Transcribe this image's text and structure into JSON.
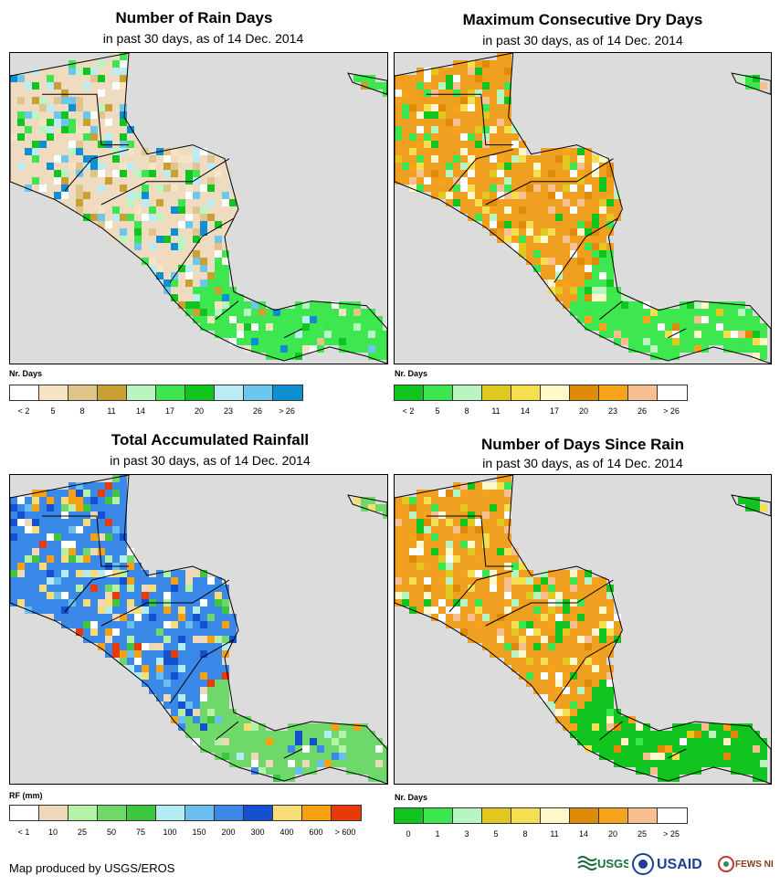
{
  "footer": "Map produced by USGS/EROS",
  "logos": {
    "usgs": "USGS",
    "usaid": "USAID",
    "fewsnet": "FEWS NET"
  },
  "panels": [
    {
      "title": "Number of Rain Days",
      "subtitle": "in past 30 days, as of 14 Dec. 2014",
      "legend_title": "Nr. Days",
      "colors": [
        "#ffffff",
        "#f5e3c3",
        "#e0c48c",
        "#c9a032",
        "#b9f5c0",
        "#3de64f",
        "#12c41f",
        "#bbecf5",
        "#6bc7ee",
        "#0f8fd1"
      ],
      "labels": [
        "< 2",
        "5",
        "8",
        "11",
        "14",
        "17",
        "20",
        "23",
        "26",
        "> 26"
      ],
      "palette": {
        "land": "#efdcc0",
        "wet": "#3ee64f"
      }
    },
    {
      "title": "Maximum Consecutive Dry Days",
      "subtitle": "in past 30 days, as of 14 Dec. 2014",
      "legend_title": "Nr. Days",
      "colors": [
        "#12c41f",
        "#3de64f",
        "#b9f5c0",
        "#e0c820",
        "#f5de50",
        "#fff8c8",
        "#e08a0a",
        "#f7a41c",
        "#f8c090",
        "#ffffff"
      ],
      "labels": [
        "< 2",
        "5",
        "8",
        "11",
        "14",
        "17",
        "20",
        "23",
        "26",
        "> 26"
      ],
      "palette": {
        "land": "#f0a020",
        "wet": "#3ee64f"
      }
    },
    {
      "title": "Total Accumulated Rainfall",
      "subtitle": "in past 30 days, as of 14 Dec. 2014",
      "legend_title": "RF (mm)",
      "colors": [
        "#ffffff",
        "#efd8b8",
        "#b6f2a6",
        "#6fd86a",
        "#3ec73e",
        "#b4ecf4",
        "#6bbff0",
        "#3a88e8",
        "#1550d0",
        "#f8dc78",
        "#f7a010",
        "#e83a08"
      ],
      "labels": [
        "< 1",
        "10",
        "25",
        "50",
        "75",
        "100",
        "150",
        "200",
        "300",
        "400",
        "600",
        "> 600"
      ],
      "palette": {
        "land": "#3a88e8",
        "wet": "#6fd86a"
      }
    },
    {
      "title": "Number of Days Since Rain",
      "subtitle": "in past 30 days, as of 14 Dec. 2014",
      "legend_title": "Nr. Days",
      "colors": [
        "#12c41f",
        "#3de64f",
        "#b9f5c0",
        "#e0c820",
        "#f5de50",
        "#fff8c8",
        "#e08a0a",
        "#f7a41c",
        "#f8c090",
        "#ffffff"
      ],
      "labels": [
        "0",
        "1",
        "3",
        "5",
        "8",
        "11",
        "14",
        "20",
        "25",
        "> 25"
      ],
      "palette": {
        "land": "#f0a020",
        "wet": "#12c41f"
      }
    }
  ]
}
